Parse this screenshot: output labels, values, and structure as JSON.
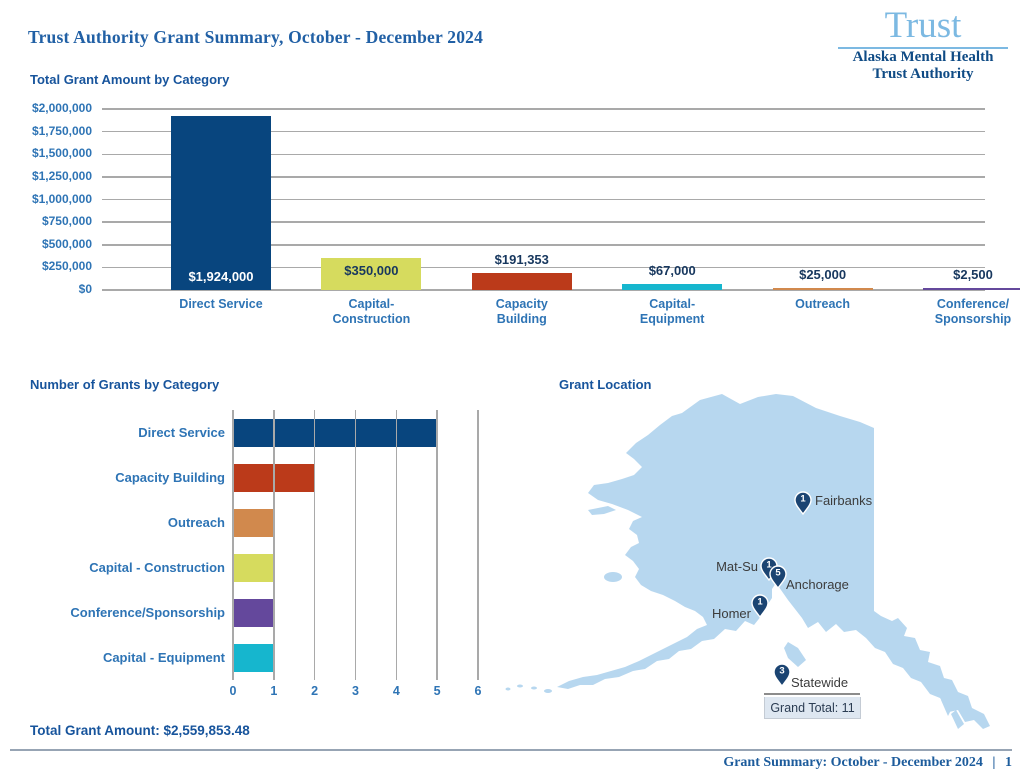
{
  "header": {
    "title": "Trust Authority Grant Summary, October - December 2024",
    "logo": {
      "word": "Trust",
      "line1": "Alaska Mental Health",
      "line2": "Trust Authority"
    }
  },
  "colors": {
    "heading_blue": "#17549C",
    "label_blue": "#2E74B5",
    "title_blue": "#2160A5",
    "grid_gray": "#A9A9A9",
    "map_fill": "#B7D7EF",
    "pin_navy": "#1B4472",
    "palette_navy": "#08457E",
    "palette_yellow_green": "#D6DB5E",
    "palette_rust": "#BB3A1A",
    "palette_cyan": "#16B6CE",
    "palette_orange": "#D1894D",
    "palette_purple": "#64489C"
  },
  "chart_data": [
    {
      "type": "bar",
      "orientation": "vertical",
      "title": "Total Grant Amount by Category",
      "categories": [
        "Direct Service",
        "Capital-Construction",
        "Capacity Building",
        "Capital-Equipment",
        "Outreach",
        "Conference/Sponsorship"
      ],
      "category_label_lines": [
        [
          "Direct Service"
        ],
        [
          "Capital-",
          "Construction"
        ],
        [
          "Capacity",
          "Building"
        ],
        [
          "Capital-",
          "Equipment"
        ],
        [
          "Outreach"
        ],
        [
          "Conference/",
          "Sponsorship"
        ]
      ],
      "values": [
        1924000,
        350000,
        191353,
        67000,
        25000,
        2500
      ],
      "value_labels": [
        "$1,924,000",
        "$350,000",
        "$191,353",
        "$67,000",
        "$25,000",
        "$2,500"
      ],
      "bar_colors": [
        "#08457E",
        "#D6DB5E",
        "#BB3A1A",
        "#16B6CE",
        "#D1894D",
        "#64489C"
      ],
      "ylim": [
        0,
        2000000
      ],
      "ytick_labels": [
        "$2,000,000",
        "$1,750,000",
        "$1,500,000",
        "$1,250,000",
        "$1,000,000",
        "$750,000",
        "$500,000",
        "$250,000",
        "$0"
      ],
      "grid": "horizontal"
    },
    {
      "type": "bar",
      "orientation": "horizontal",
      "title": "Number of Grants by Category",
      "categories": [
        "Direct Service",
        "Capacity Building",
        "Outreach",
        "Capital - Construction",
        "Conference/Sponsorship",
        "Capital - Equipment"
      ],
      "values": [
        5,
        2,
        1,
        1,
        1,
        1
      ],
      "bar_colors": [
        "#08457E",
        "#BB3A1A",
        "#D1894D",
        "#D6DB5E",
        "#64489C",
        "#16B6CE"
      ],
      "xlim": [
        0,
        6
      ],
      "xtick_labels": [
        "0",
        "1",
        "2",
        "3",
        "4",
        "5",
        "6"
      ],
      "grid": "vertical"
    },
    {
      "type": "map",
      "title": "Grant Location",
      "region": "Alaska",
      "pins": [
        {
          "name": "Fairbanks",
          "count": 1
        },
        {
          "name": "Mat-Su",
          "count": 1
        },
        {
          "name": "Anchorage",
          "count": 5
        },
        {
          "name": "Homer",
          "count": 1
        },
        {
          "name": "Statewide",
          "count": 3
        }
      ],
      "grand_total_text": "Grand Total: 11",
      "grand_total_value": 11
    }
  ],
  "footer": {
    "total_label": "Total Grant Amount: $2,559,853.48",
    "page_label": "Grant Summary: October - December 2024",
    "separator": "|",
    "page_number": "1"
  }
}
